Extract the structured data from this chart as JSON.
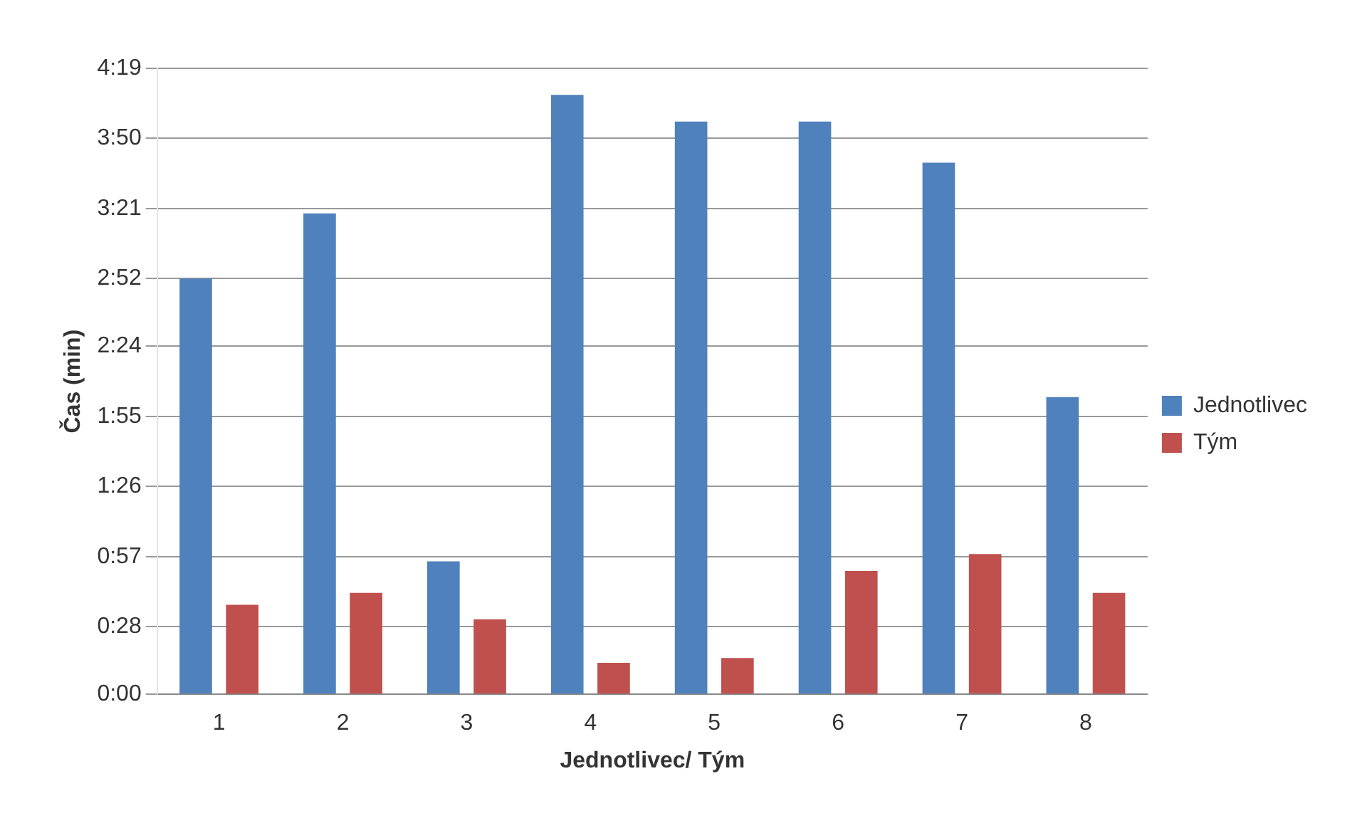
{
  "chart_data": {
    "type": "bar",
    "xlabel": "Jednotlivec/ Tým",
    "ylabel": "Čas (min)",
    "categories": [
      "1",
      "2",
      "3",
      "4",
      "5",
      "6",
      "7",
      "8"
    ],
    "series": [
      {
        "name": "Jednotlivec",
        "color": "#4f81bd",
        "values": [
          172,
          199,
          55,
          248,
          237,
          237,
          220,
          123
        ]
      },
      {
        "name": "Tým",
        "color": "#c0504d",
        "values": [
          37,
          42,
          31,
          13,
          15,
          51,
          58,
          42
        ]
      }
    ],
    "ylim": [
      0,
      259
    ],
    "yticks": [
      {
        "value": 0,
        "label": "0:00"
      },
      {
        "value": 28,
        "label": "0:28"
      },
      {
        "value": 57,
        "label": "0:57"
      },
      {
        "value": 86,
        "label": "1:26"
      },
      {
        "value": 115,
        "label": "1:55"
      },
      {
        "value": 144,
        "label": "2:24"
      },
      {
        "value": 172,
        "label": "2:52"
      },
      {
        "value": 201,
        "label": "3:21"
      },
      {
        "value": 230,
        "label": "3:50"
      },
      {
        "value": 259,
        "label": "4:19"
      }
    ],
    "grid": "y",
    "legend": "right"
  }
}
